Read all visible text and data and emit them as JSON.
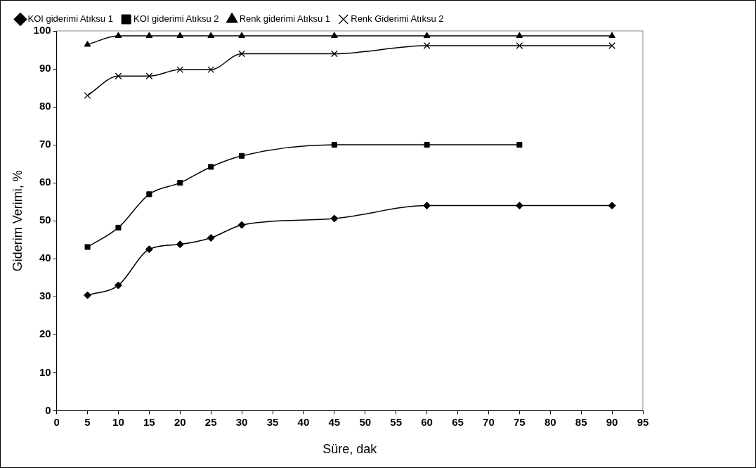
{
  "chart_data": {
    "type": "line",
    "xlabel": "Süre, dak",
    "ylabel": "Giderim Verimi, %",
    "xlim": [
      0,
      95
    ],
    "xticks": [
      0,
      5,
      10,
      15,
      20,
      25,
      30,
      35,
      40,
      45,
      50,
      55,
      60,
      65,
      70,
      75,
      80,
      85,
      90,
      95
    ],
    "ylim": [
      0,
      100
    ],
    "yticks": [
      0,
      10,
      20,
      30,
      40,
      50,
      60,
      70,
      80,
      90,
      100
    ],
    "grid": false,
    "legend": "top",
    "line_style": "solid",
    "series": [
      {
        "name": "KOI giderimi Atıksu 1",
        "color": "#000000",
        "marker": "diamond",
        "x": [
          5,
          10,
          15,
          20,
          25,
          30,
          45,
          60,
          75,
          90
        ],
        "values": [
          30.4,
          33,
          42.5,
          43.8,
          45.5,
          48.9,
          50.6,
          54,
          54,
          54
        ]
      },
      {
        "name": "KOI giderimi Atıksu 2",
        "color": "#000000",
        "marker": "square",
        "x": [
          5,
          10,
          15,
          20,
          25,
          30,
          45,
          60,
          75
        ],
        "values": [
          43.1,
          48.2,
          57,
          60,
          64.2,
          67.1,
          70,
          70,
          70
        ]
      },
      {
        "name": "Renk giderimi Atıksu 1",
        "color": "#000000",
        "marker": "triangle",
        "x": [
          5,
          10,
          15,
          20,
          25,
          30,
          45,
          60,
          75,
          90
        ],
        "values": [
          96.4,
          98.7,
          98.7,
          98.7,
          98.7,
          98.7,
          98.7,
          98.7,
          98.7,
          98.7
        ]
      },
      {
        "name": "Renk Giderimi Atıksu 2",
        "color": "#000000",
        "marker": "cross",
        "x": [
          5,
          10,
          15,
          20,
          25,
          30,
          45,
          60,
          75,
          90
        ],
        "values": [
          83,
          88.1,
          88.1,
          89.8,
          89.8,
          94,
          94,
          96.1,
          96.1,
          96.1
        ]
      }
    ]
  }
}
